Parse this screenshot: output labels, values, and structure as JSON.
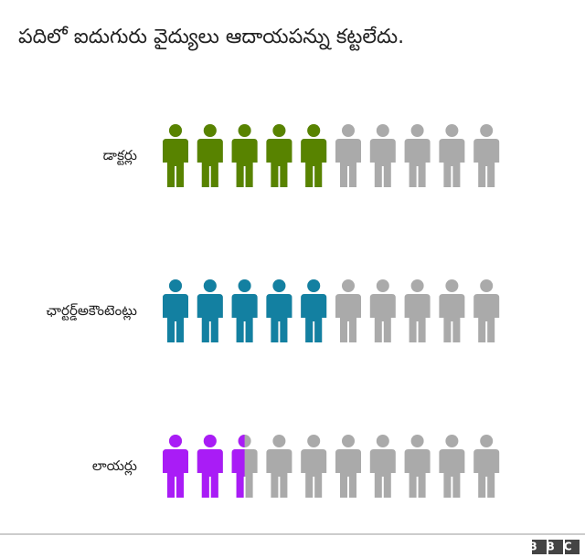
{
  "chart_data": {
    "type": "pictogram",
    "title": "పదిలో ఐదుగురు వైద్యులు ఆదాయపన్ను కట్టలేదు.",
    "categories": [
      "డాక్టర్లు",
      "ఛార్టర్డ్అకౌంటెంట్లు",
      "లాయర్లు"
    ],
    "values": [
      5,
      5,
      2.5
    ],
    "xlim": [
      0,
      10
    ],
    "colors": [
      "#588300",
      "#1380a1",
      "#a91cf6"
    ],
    "rest_color": "#aaaaaa",
    "source": "BBC"
  }
}
